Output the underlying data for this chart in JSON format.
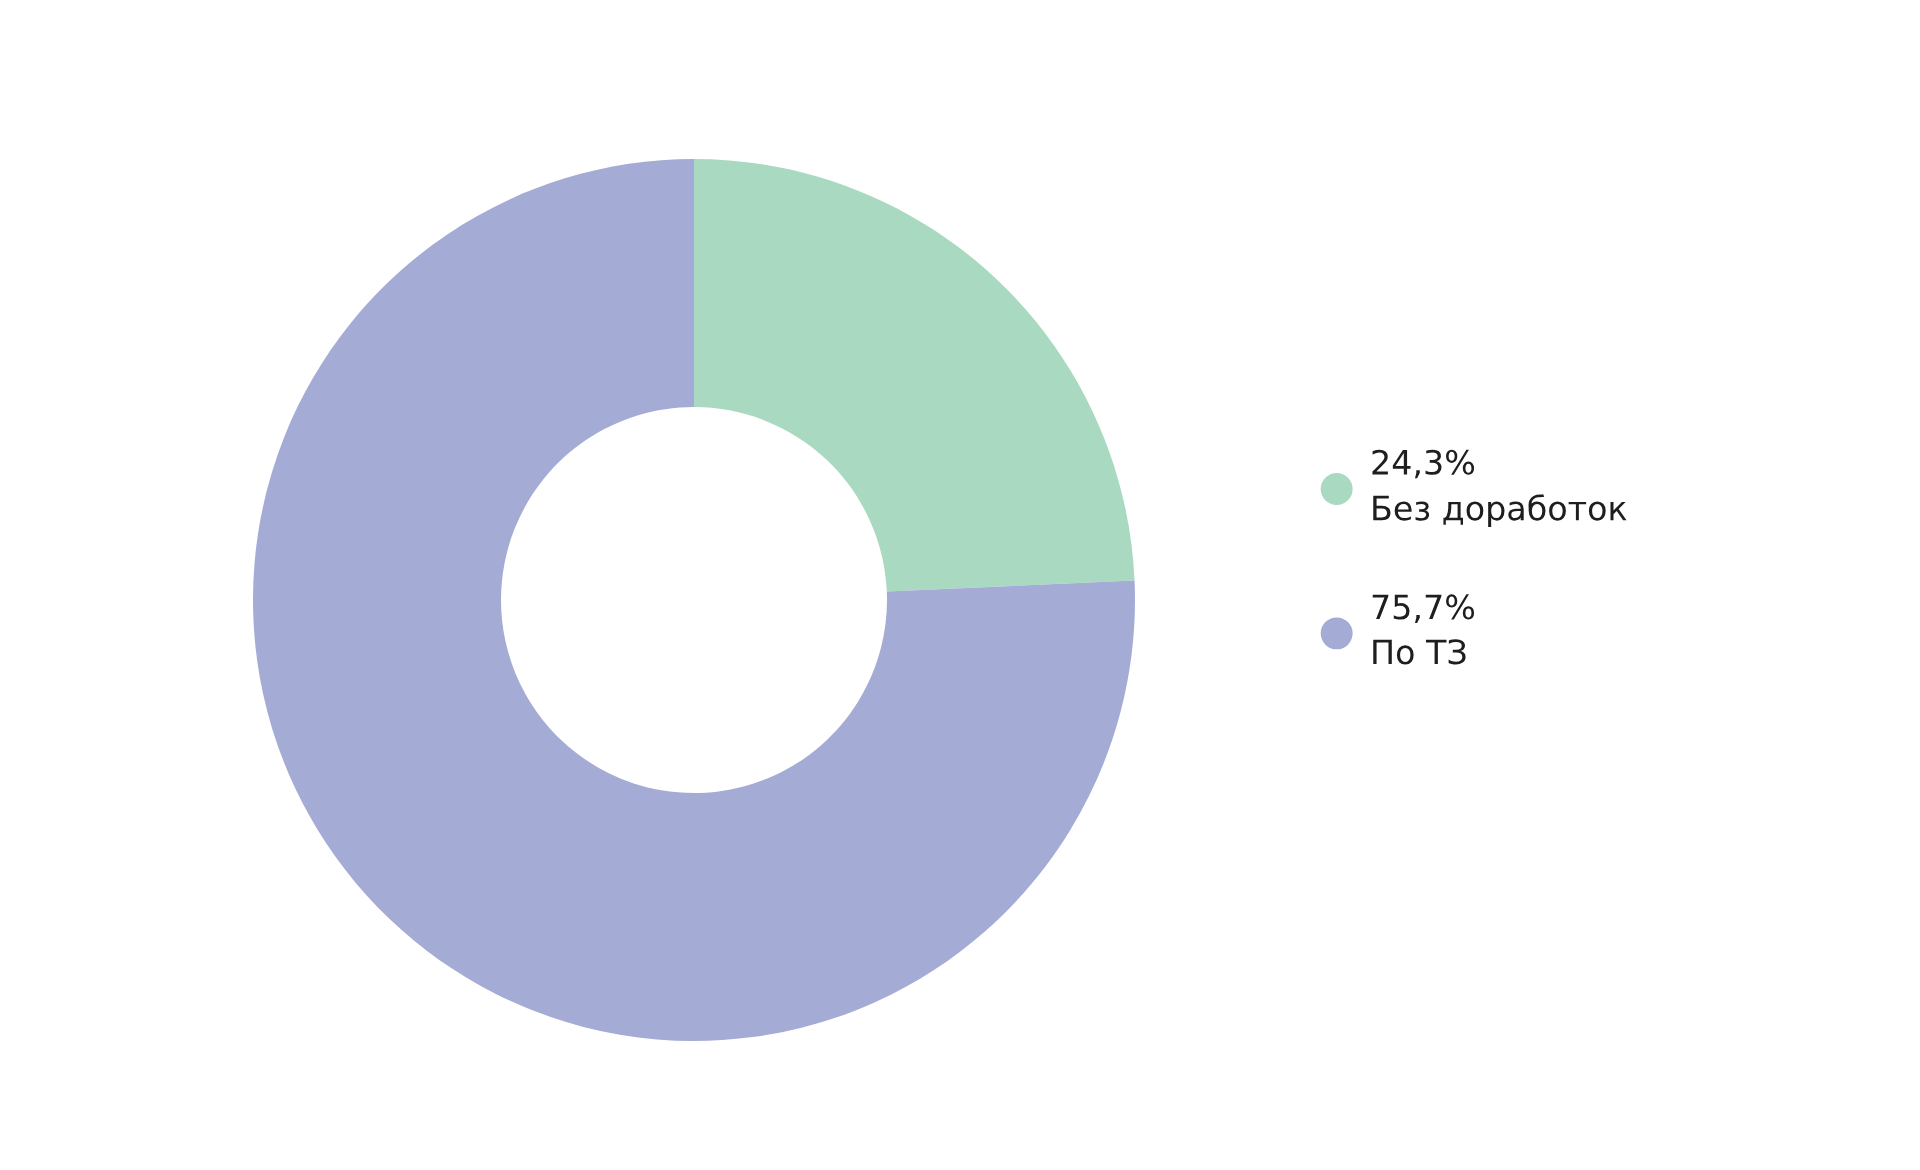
{
  "chart_data": {
    "type": "donut",
    "categories": [
      "Без доработок",
      "По ТЗ"
    ],
    "values": [
      24.3,
      75.7
    ],
    "value_labels": [
      "24,3%",
      "75,7%"
    ],
    "colors": [
      "#a9d9c1",
      "#a4abd4"
    ],
    "legend": "right"
  }
}
